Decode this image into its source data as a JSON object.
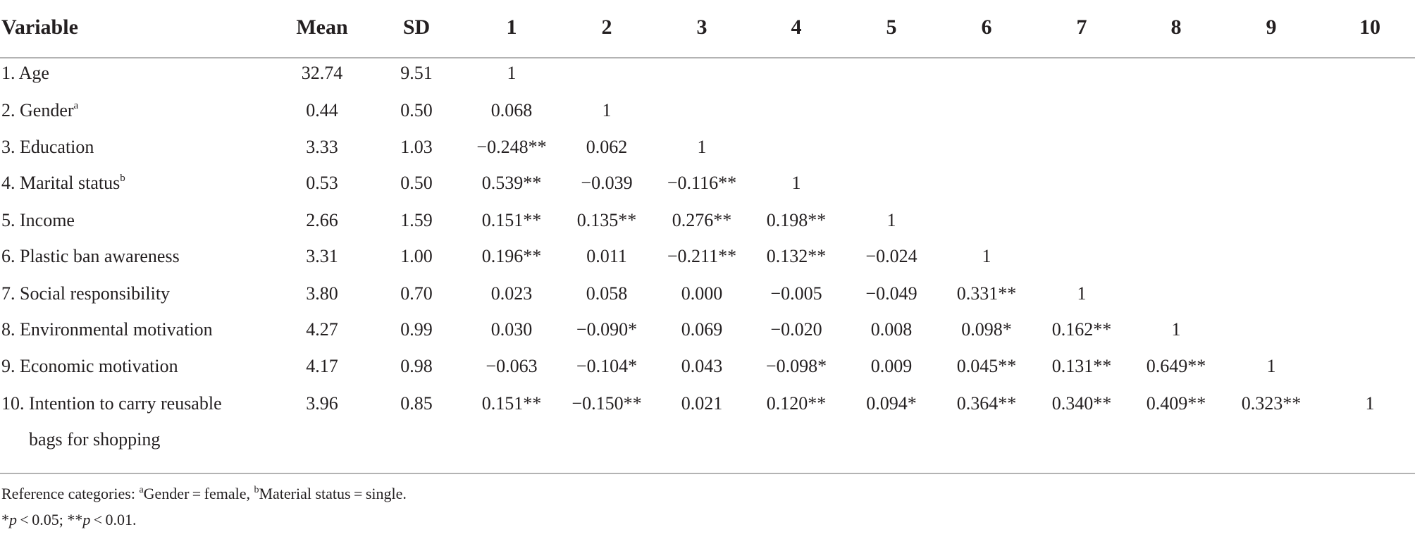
{
  "table": {
    "header": [
      "Variable",
      "Mean",
      "SD",
      "1",
      "2",
      "3",
      "4",
      "5",
      "6",
      "7",
      "8",
      "9",
      "10"
    ],
    "rows": [
      {
        "variable": "1. Age",
        "cells": [
          "32.74",
          "9.51",
          "1"
        ]
      },
      {
        "variable": "2. Gender",
        "sup": "a",
        "cells": [
          "0.44",
          "0.50",
          "0.068",
          "1"
        ]
      },
      {
        "variable": "3. Education",
        "cells": [
          "3.33",
          "1.03",
          "−0.248**",
          "0.062",
          "1"
        ]
      },
      {
        "variable": "4. Marital status",
        "sup": "b",
        "cells": [
          "0.53",
          "0.50",
          "0.539**",
          "−0.039",
          "−0.116**",
          "1"
        ]
      },
      {
        "variable": "5. Income",
        "cells": [
          "2.66",
          "1.59",
          "0.151**",
          "0.135**",
          "0.276**",
          "0.198**",
          "1"
        ]
      },
      {
        "variable": "6. Plastic ban awareness",
        "cells": [
          "3.31",
          "1.00",
          "0.196**",
          "0.011",
          "−0.211**",
          "0.132**",
          "−0.024",
          "1"
        ]
      },
      {
        "variable": "7. Social responsibility",
        "cells": [
          "3.80",
          "0.70",
          "0.023",
          "0.058",
          "0.000",
          "−0.005",
          "−0.049",
          "0.331**",
          "1"
        ]
      },
      {
        "variable": "8. Environmental motivation",
        "cells": [
          "4.27",
          "0.99",
          "0.030",
          "−0.090*",
          "0.069",
          "−0.020",
          "0.008",
          "0.098*",
          "0.162**",
          "1"
        ]
      },
      {
        "variable": "9. Economic motivation",
        "cells": [
          "4.17",
          "0.98",
          "−0.063",
          "−0.104*",
          "0.043",
          "−0.098*",
          "0.009",
          "0.045**",
          "0.131**",
          "0.649**",
          "1"
        ]
      },
      {
        "variable": "10. Intention to carry reusable",
        "variable_cont": "bags for shopping",
        "cells": [
          "3.96",
          "0.85",
          "0.151**",
          "−0.150**",
          "0.021",
          "0.120**",
          "0.094*",
          "0.364**",
          "0.340**",
          "0.409**",
          "0.323**",
          "1"
        ]
      }
    ],
    "notes": [
      [
        {
          "text": "Reference categories: "
        },
        {
          "text": "a",
          "style": "sup"
        },
        {
          "text": "Gender = female, "
        },
        {
          "text": "b",
          "style": "sup"
        },
        {
          "text": "Material status = single."
        }
      ],
      [
        {
          "text": "*"
        },
        {
          "text": "p",
          "style": "italic"
        },
        {
          "text": " < 0.05;  **"
        },
        {
          "text": "p",
          "style": "italic"
        },
        {
          "text": " < 0.01."
        }
      ]
    ]
  }
}
